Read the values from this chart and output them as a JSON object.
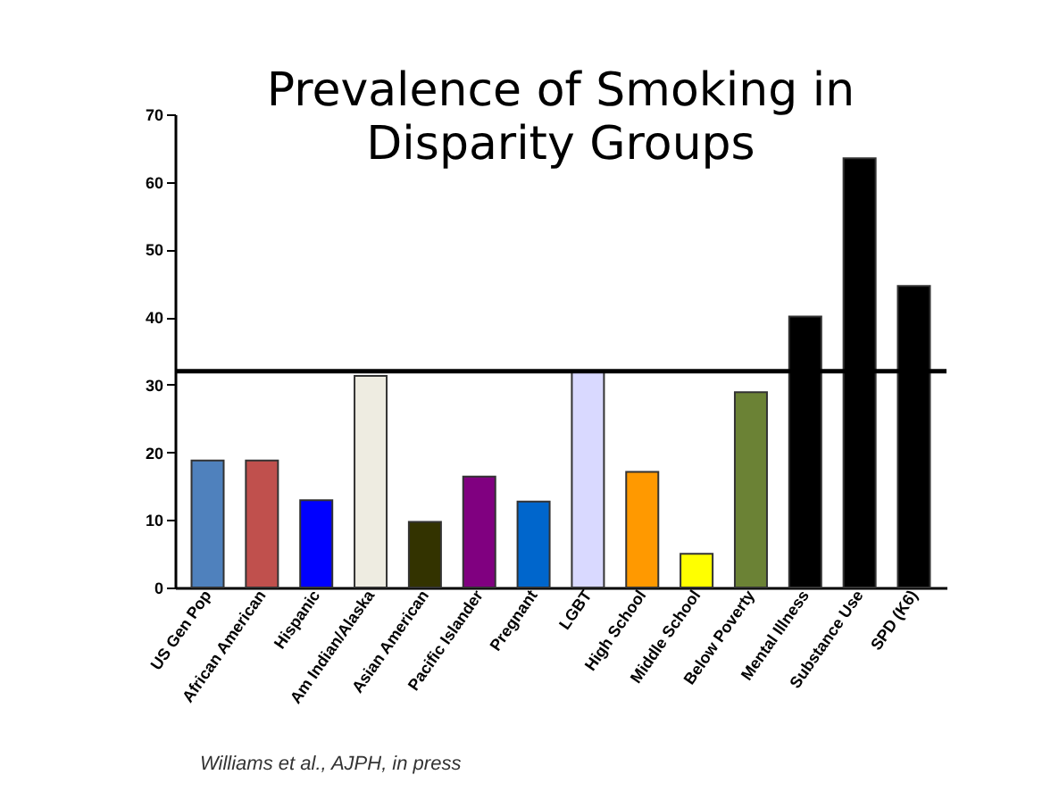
{
  "chart_data": {
    "type": "bar",
    "title": "Prevalence of Smoking in\nDisparity Groups",
    "categories": [
      "US Gen Pop",
      "African American",
      "Hispanic",
      "Am Indian/Alaska",
      "Asian American",
      "Pacific Islander",
      "Pregnant",
      "LGBT",
      "High School",
      "Middle School",
      "Below Poverty",
      "Mental Illness",
      "Substance Use",
      "SPD (K6)"
    ],
    "values": [
      18.8,
      18.8,
      12.9,
      31.3,
      9.7,
      16.4,
      12.7,
      32,
      17.1,
      5.0,
      28.9,
      40.1,
      63.5,
      44.6
    ],
    "colors": [
      "#4f81bd",
      "#c0504d",
      "#0000ff",
      "#eeece1",
      "#333300",
      "#800080",
      "#0066cc",
      "#d9d9ff",
      "#ff9900",
      "#ffff00",
      "#6b8235",
      "#000000",
      "#000000",
      "#000000"
    ],
    "ylim": [
      0,
      70
    ],
    "yticks": [
      0,
      10,
      20,
      30,
      40,
      50,
      60,
      70
    ],
    "ref_lines": [
      {
        "axis": "y",
        "value": 32,
        "color": "#000000"
      }
    ],
    "annotations": [
      "Williams et al., AJPH, in press"
    ],
    "grid": false
  }
}
